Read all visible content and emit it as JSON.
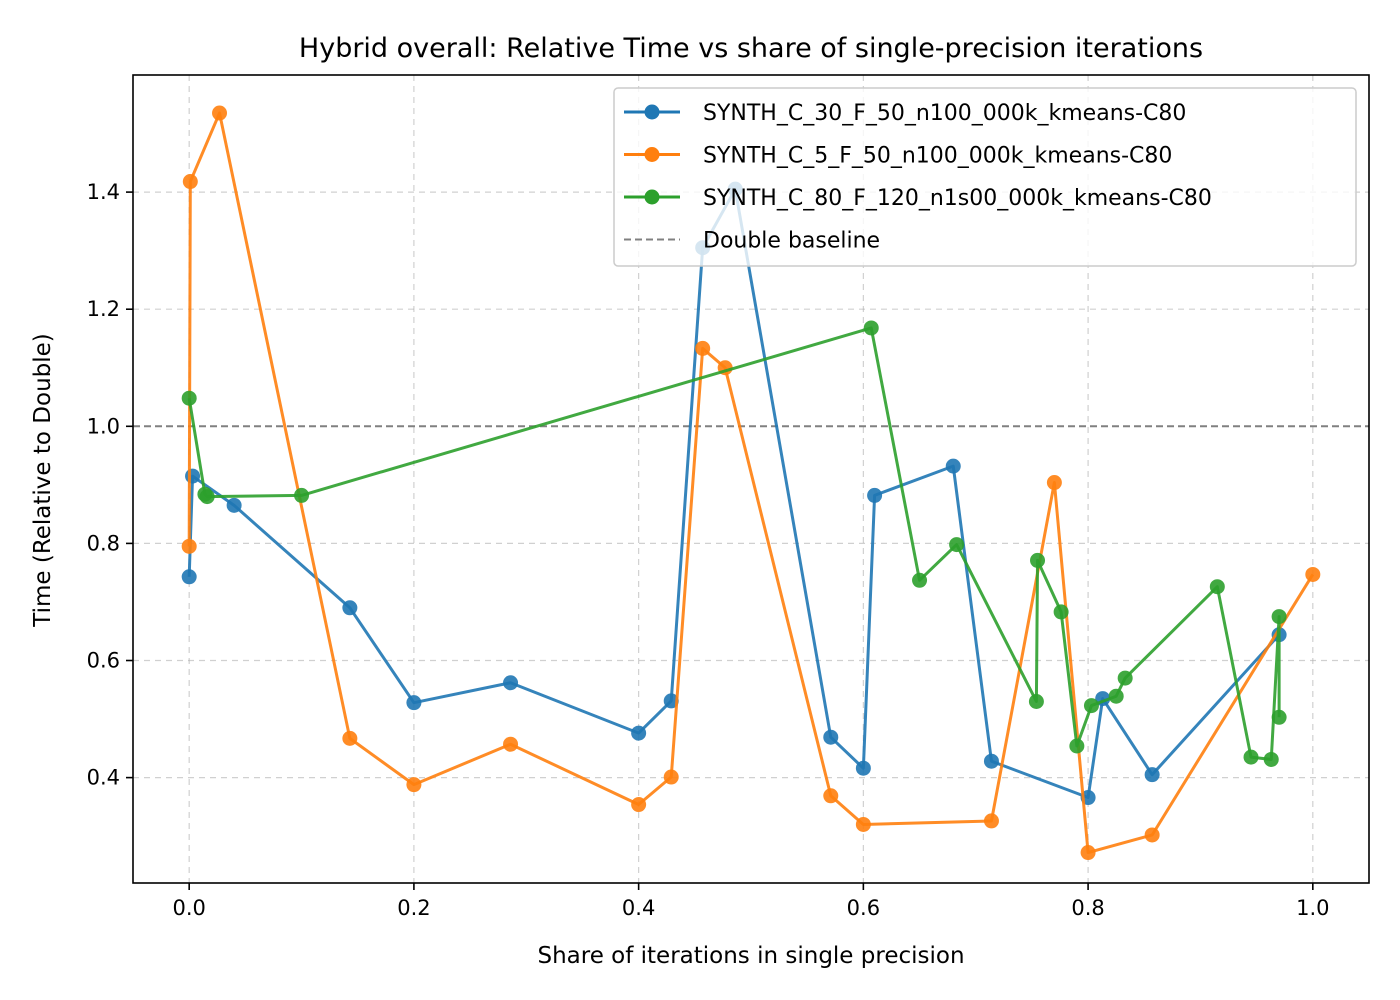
{
  "chart_data": {
    "type": "line",
    "title": "Hybrid overall: Relative Time vs share of single-precision iterations",
    "xlabel": "Share of iterations in single precision",
    "ylabel": "Time (Relative to Double)",
    "xlim": [
      -0.05,
      1.05
    ],
    "ylim": [
      0.22,
      1.6
    ],
    "xticks": [
      0.0,
      0.2,
      0.4,
      0.6,
      0.8,
      1.0
    ],
    "xtick_labels": [
      "0.0",
      "0.2",
      "0.4",
      "0.6",
      "0.8",
      "1.0"
    ],
    "yticks": [
      0.4,
      0.6,
      0.8,
      1.0,
      1.2,
      1.4
    ],
    "ytick_labels": [
      "0.4",
      "0.6",
      "0.8",
      "1.0",
      "1.2",
      "1.4"
    ],
    "grid": true,
    "legend_position": "top-right",
    "baseline": {
      "name": "Double baseline",
      "y": 1.0,
      "color": "#808080"
    },
    "series": [
      {
        "name": "SYNTH_C_30_F_50_n100_000k_kmeans-C80",
        "color": "#1f77b4",
        "x": [
          0.0,
          0.003,
          0.04,
          0.143,
          0.2,
          0.286,
          0.4,
          0.429,
          0.457,
          0.486,
          0.571,
          0.6,
          0.61,
          0.68,
          0.714,
          0.8,
          0.813,
          0.857,
          0.97
        ],
        "y": [
          0.743,
          0.915,
          0.865,
          0.69,
          0.528,
          0.562,
          0.476,
          0.531,
          1.305,
          1.405,
          0.469,
          0.416,
          0.882,
          0.932,
          0.428,
          0.366,
          0.535,
          0.405,
          0.644
        ]
      },
      {
        "name": "SYNTH_C_5_F_50_n100_000k_kmeans-C80",
        "color": "#ff7f0e",
        "x": [
          0.0,
          0.001,
          0.027,
          0.143,
          0.2,
          0.286,
          0.4,
          0.429,
          0.457,
          0.477,
          0.571,
          0.6,
          0.714,
          0.77,
          0.8,
          0.857,
          1.0
        ],
        "y": [
          0.795,
          1.418,
          1.535,
          0.467,
          0.388,
          0.457,
          0.354,
          0.401,
          1.133,
          1.1,
          0.369,
          0.32,
          0.326,
          0.904,
          0.272,
          0.302,
          0.747
        ]
      },
      {
        "name": "SYNTH_C_80_F_120_n1s00_000k_kmeans-C80",
        "color": "#2ca02c",
        "x": [
          0.0,
          0.014,
          0.016,
          0.1,
          0.607,
          0.65,
          0.683,
          0.754,
          0.755,
          0.776,
          0.79,
          0.803,
          0.825,
          0.833,
          0.915,
          0.945,
          0.963,
          0.97,
          0.97
        ],
        "y": [
          1.048,
          0.884,
          0.88,
          0.882,
          1.168,
          0.737,
          0.798,
          0.53,
          0.771,
          0.683,
          0.454,
          0.523,
          0.539,
          0.57,
          0.726,
          0.435,
          0.431,
          0.675,
          0.503
        ]
      }
    ]
  }
}
